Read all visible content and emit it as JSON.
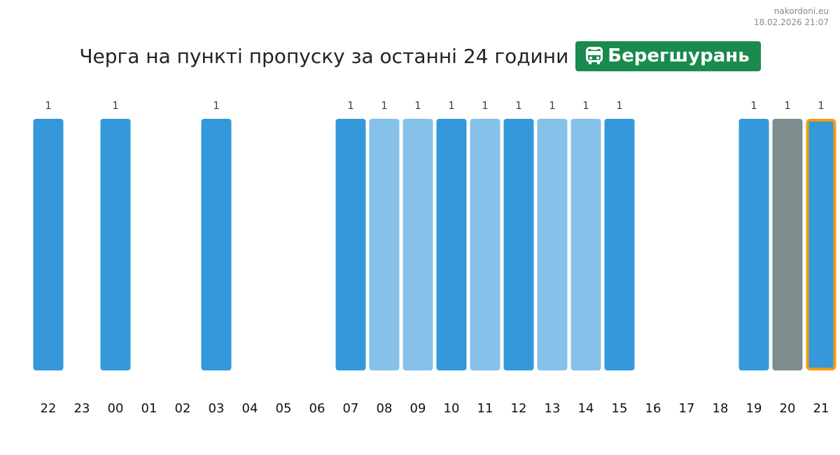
{
  "site": {
    "name": "nakordoni.eu",
    "timestamp": "18.02.2026 21:07"
  },
  "header": {
    "title": "Черга на пункті пропуску за останні 24 години",
    "crossing": "Берегшурань",
    "crossing_icon": "bus-icon",
    "badge_color": "#1a8a4f"
  },
  "chart_data": {
    "type": "bar",
    "categories": [
      "22",
      "23",
      "00",
      "01",
      "02",
      "03",
      "04",
      "05",
      "06",
      "07",
      "08",
      "09",
      "10",
      "11",
      "12",
      "13",
      "14",
      "15",
      "16",
      "17",
      "18",
      "19",
      "20",
      "21"
    ],
    "values": [
      1,
      null,
      1,
      null,
      null,
      1,
      null,
      null,
      null,
      1,
      1,
      1,
      1,
      1,
      1,
      1,
      1,
      1,
      null,
      null,
      null,
      1,
      1,
      1
    ],
    "bar_colors": [
      "#3498db",
      null,
      "#3498db",
      null,
      null,
      "#3498db",
      null,
      null,
      null,
      "#3498db",
      "#85c1e9",
      "#85c1e9",
      "#3498db",
      "#85c1e9",
      "#3498db",
      "#85c1e9",
      "#85c1e9",
      "#3498db",
      null,
      null,
      null,
      "#3498db",
      "#7f8c8d",
      "#3498db"
    ],
    "highlight_index": 23,
    "highlight_color": "#f39c12",
    "ylim": [
      0,
      1
    ],
    "grid": false,
    "legend": "none"
  }
}
